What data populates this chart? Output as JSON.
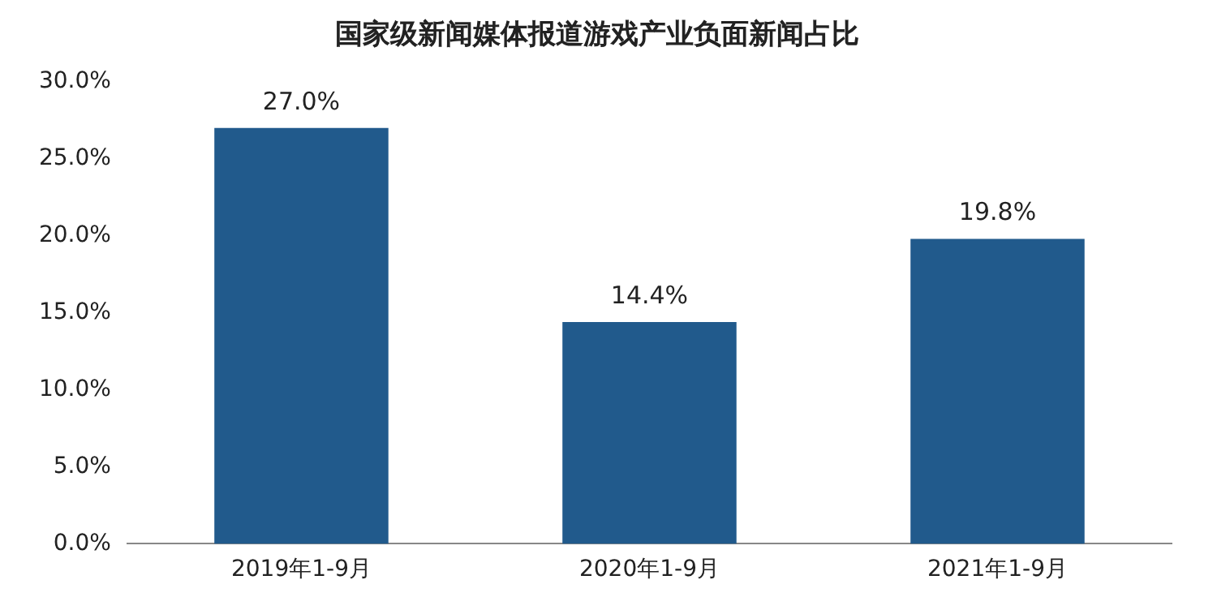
{
  "chart_data": {
    "type": "bar",
    "title": "国家级新闻媒体报道游戏产业负面新闻占比",
    "categories": [
      "2019年1-9月",
      "2020年1-9月",
      "2021年1-9月"
    ],
    "values": [
      27.0,
      14.4,
      19.8
    ],
    "color": "#215a8c",
    "value_labels": [
      "27.0%",
      "14.4%",
      "19.8%"
    ],
    "ylim": [
      0,
      30
    ],
    "yticks": [
      {
        "value": 0,
        "label": "0.0%"
      },
      {
        "value": 5,
        "label": "5.0%"
      },
      {
        "value": 10,
        "label": "10.0%"
      },
      {
        "value": 15,
        "label": "15.0%"
      },
      {
        "value": 20,
        "label": "20.0%"
      },
      {
        "value": 25,
        "label": "25.0%"
      },
      {
        "value": 30,
        "label": "30.0%"
      }
    ],
    "grid": false,
    "legend": false
  }
}
